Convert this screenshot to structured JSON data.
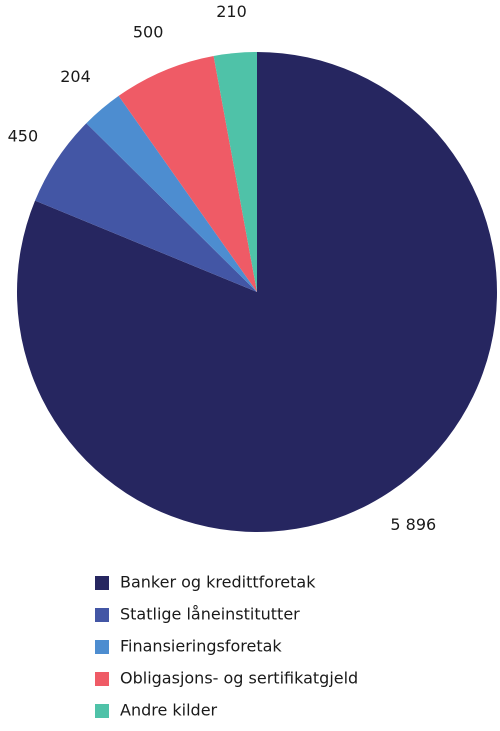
{
  "chart_data": {
    "type": "pie",
    "categories": [
      "Banker og kredittforetak",
      "Statlige låneinstitutter",
      "Finansieringsforetak",
      "Obligasjons- og sertifikatgjeld",
      "Andre kilder"
    ],
    "values": [
      5896,
      450,
      204,
      500,
      210
    ],
    "value_labels": [
      "5 896",
      "450",
      "204",
      "500",
      "210"
    ],
    "colors": [
      "#262660",
      "#4356a5",
      "#4d8dd0",
      "#ef5b66",
      "#4fc2a8"
    ]
  }
}
